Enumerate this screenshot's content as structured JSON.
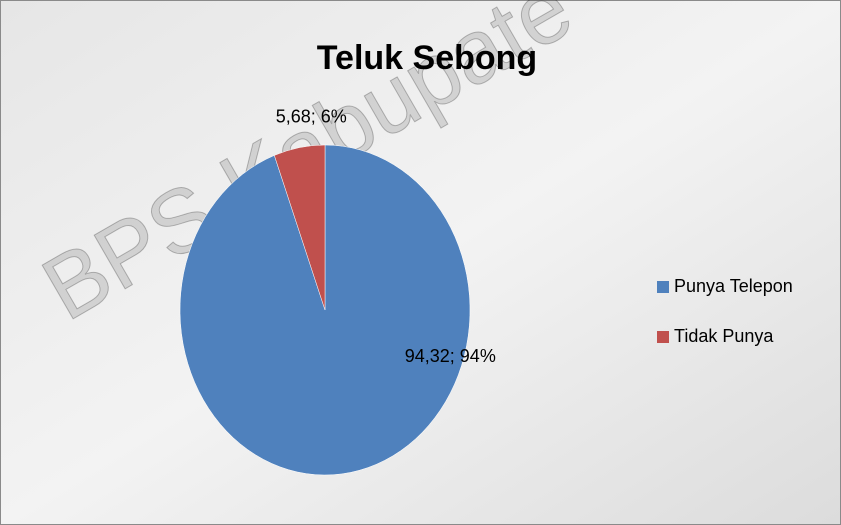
{
  "chart_data": {
    "type": "pie",
    "title": "Teluk Sebong",
    "watermark": "BPS Kabupate",
    "categories": [
      "Punya Telepon",
      "Tidak Punya"
    ],
    "values": [
      94.32,
      5.68
    ],
    "value_labels": [
      "94,32; 94%",
      "5,68; 6%"
    ],
    "colors": [
      "#4f81bd",
      "#c0504d"
    ],
    "legend": "right"
  }
}
